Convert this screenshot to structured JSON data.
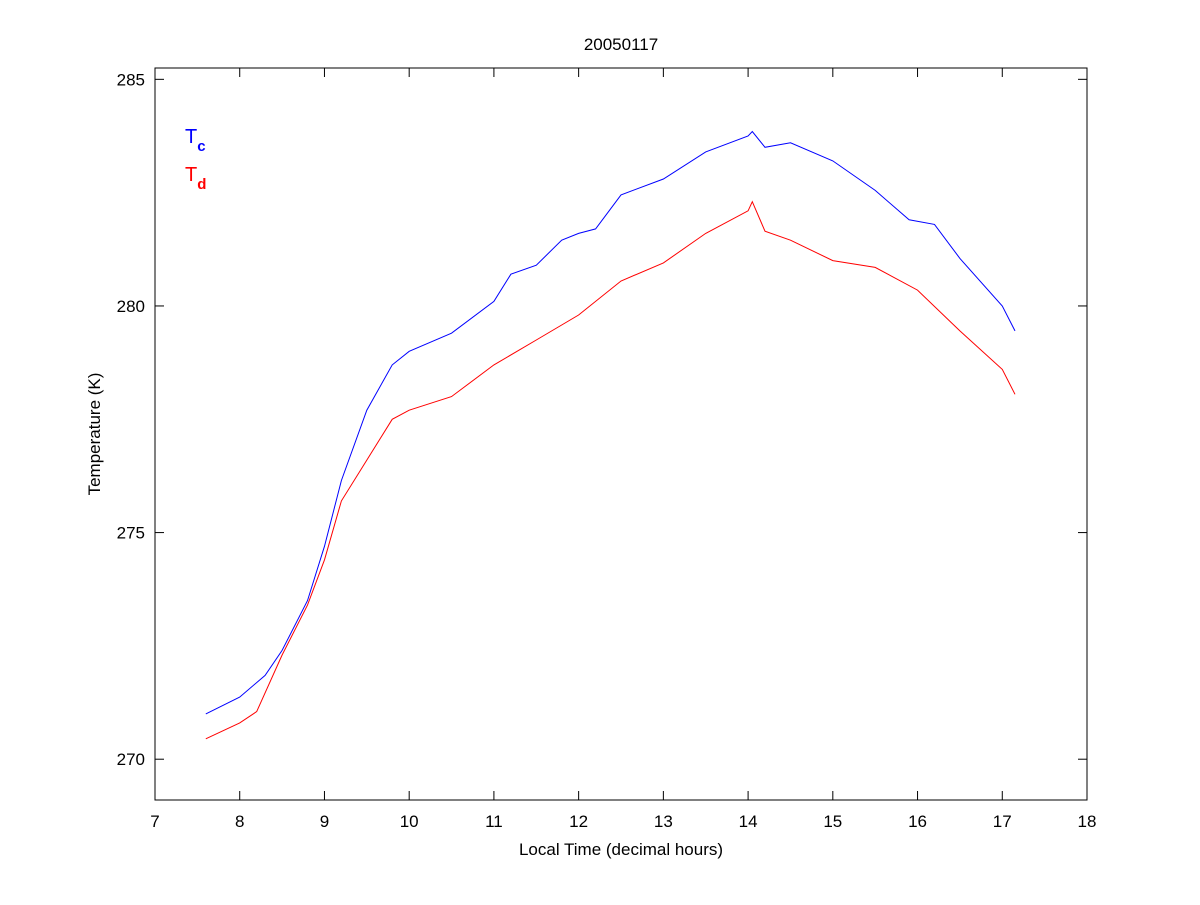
{
  "chart_data": {
    "type": "line",
    "title": "20050117",
    "xlabel": "Local Time (decimal hours)",
    "ylabel": "Temperature (K)",
    "xlim": [
      7,
      18
    ],
    "ylim": [
      269.1,
      285.25
    ],
    "xticks": [
      7,
      8,
      9,
      10,
      11,
      12,
      13,
      14,
      15,
      16,
      17,
      18
    ],
    "yticks": [
      270,
      275,
      280,
      285
    ],
    "grid": false,
    "legend_placement": "top-left",
    "series": [
      {
        "name": "T",
        "subscript": "c",
        "color": "#0000ff",
        "x": [
          7.6,
          8.0,
          8.3,
          8.5,
          8.8,
          9.0,
          9.2,
          9.5,
          9.8,
          10.0,
          10.5,
          11.0,
          11.2,
          11.5,
          11.8,
          12.0,
          12.2,
          12.5,
          13.0,
          13.5,
          14.0,
          14.05,
          14.2,
          14.5,
          15.0,
          15.5,
          15.9,
          16.2,
          16.5,
          17.0,
          17.15
        ],
        "y": [
          271.0,
          271.37,
          271.85,
          272.4,
          273.5,
          274.7,
          276.15,
          277.7,
          278.7,
          279.0,
          279.4,
          280.1,
          280.7,
          280.9,
          281.45,
          281.6,
          281.7,
          282.45,
          282.8,
          283.4,
          283.75,
          283.85,
          283.5,
          283.6,
          283.2,
          282.55,
          281.9,
          281.8,
          281.05,
          280.0,
          279.45
        ]
      },
      {
        "name": "T",
        "subscript": "d",
        "color": "#ff0000",
        "x": [
          7.6,
          8.0,
          8.2,
          8.5,
          8.8,
          9.0,
          9.2,
          9.5,
          9.8,
          10.0,
          10.5,
          11.0,
          11.5,
          12.0,
          12.5,
          13.0,
          13.5,
          14.0,
          14.05,
          14.2,
          14.5,
          15.0,
          15.5,
          16.0,
          16.5,
          17.0,
          17.15
        ],
        "y": [
          270.45,
          270.8,
          271.05,
          272.3,
          273.4,
          274.4,
          275.7,
          276.6,
          277.5,
          277.7,
          278.0,
          278.7,
          279.25,
          279.8,
          280.55,
          280.95,
          281.6,
          282.1,
          282.3,
          281.65,
          281.45,
          281.0,
          280.85,
          280.35,
          279.45,
          278.6,
          278.05
        ]
      }
    ]
  }
}
